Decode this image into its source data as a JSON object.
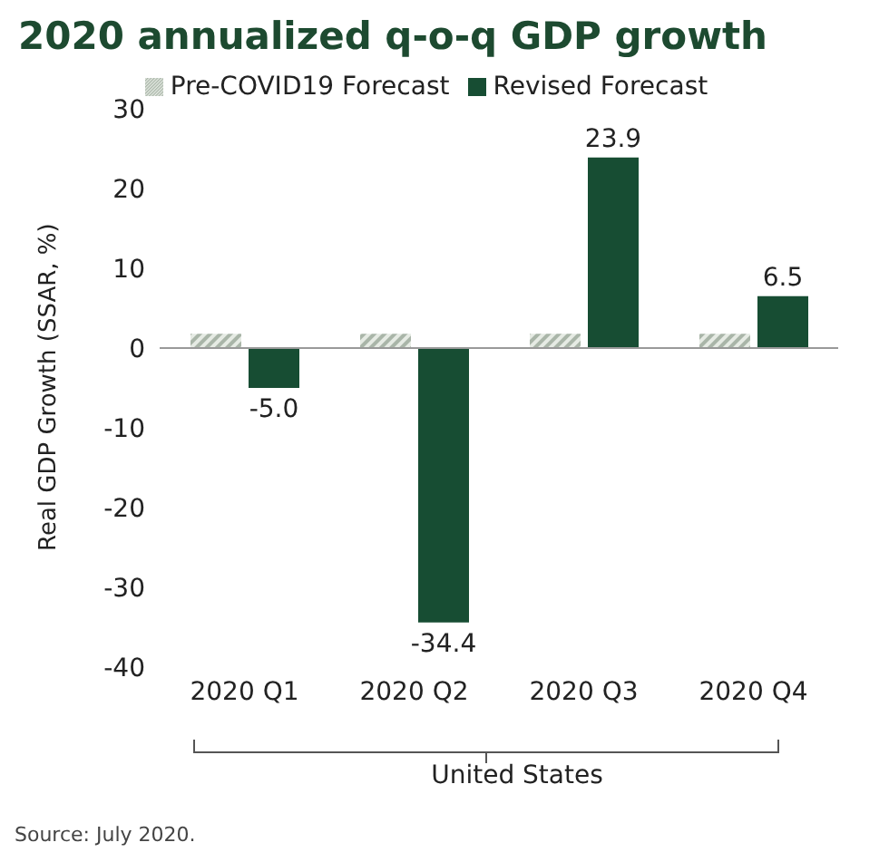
{
  "chart_data": {
    "type": "bar",
    "title": "2020 annualized q-o-q GDP growth",
    "ylabel": "Real GDP Growth (SSAR, %)",
    "categories": [
      "2020 Q1",
      "2020 Q2",
      "2020 Q3",
      "2020 Q4"
    ],
    "series": [
      {
        "name": "Pre-COVID19 Forecast",
        "color": "#a9b5a8",
        "values": [
          1.8,
          1.8,
          1.8,
          1.8
        ]
      },
      {
        "name": "Revised Forecast",
        "color": "#174d33",
        "values": [
          -5.0,
          -34.4,
          23.9,
          6.5
        ],
        "value_labels": [
          "-5.0",
          "-34.4",
          "23.9",
          "6.5"
        ]
      }
    ],
    "ylim": [
      -40,
      30
    ],
    "yticks": [
      -40,
      -30,
      -20,
      -10,
      0,
      10,
      20,
      30
    ],
    "legend": "top",
    "annotations": [
      "United States",
      "Source: July 2020."
    ]
  }
}
